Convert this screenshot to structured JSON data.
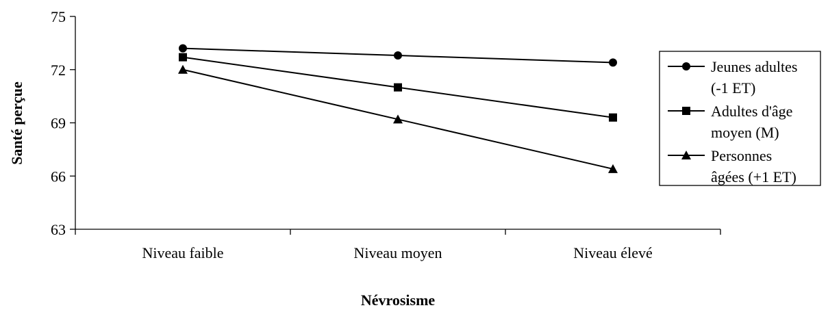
{
  "chart_data": {
    "type": "line",
    "xlabel": "Névrosisme",
    "ylabel": "Santé perçue",
    "categories": [
      "Niveau faible",
      "Niveau moyen",
      "Niveau élevé"
    ],
    "ylim": [
      63,
      75
    ],
    "yticks": [
      63,
      66,
      69,
      72,
      75
    ],
    "grid": false,
    "legend_position": "right",
    "series": [
      {
        "name_lines": [
          "Jeunes adultes",
          "(-1 ET)"
        ],
        "marker": "circle",
        "values": [
          73.2,
          72.8,
          72.4
        ]
      },
      {
        "name_lines": [
          "Adultes d'âge",
          "moyen (M)"
        ],
        "marker": "square",
        "values": [
          72.7,
          71.0,
          69.3
        ]
      },
      {
        "name_lines": [
          "Personnes",
          "âgées (+1 ET)"
        ],
        "marker": "triangle",
        "values": [
          72.0,
          69.2,
          66.4
        ]
      }
    ]
  }
}
